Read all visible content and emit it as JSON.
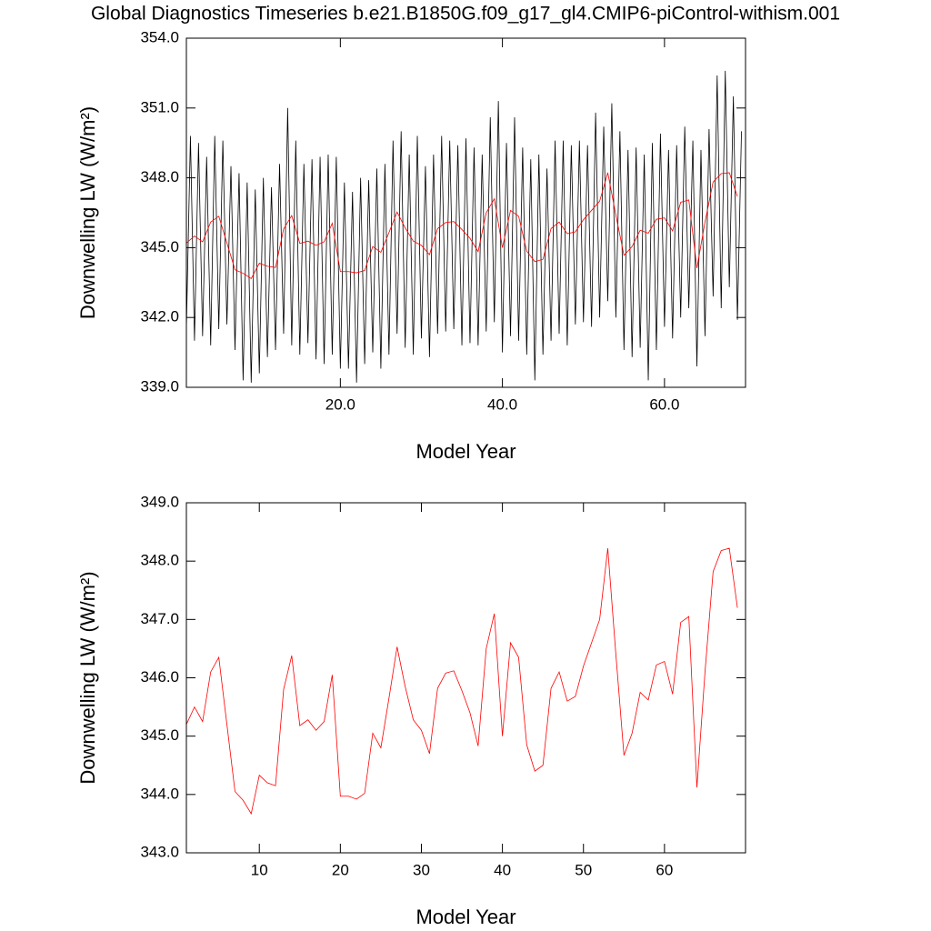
{
  "chart_data": [
    {
      "type": "line",
      "title": "Global Diagnostics Timeseries b.e21.B1850G.f09_g17_gl4.CMIP6-piControl-withism.001",
      "x_label": "Model Year",
      "y_label": "Downwelling LW (W/m²)",
      "xlim": [
        1,
        70
      ],
      "ylim": [
        339,
        354
      ],
      "xticks": [
        {
          "value": 20,
          "label": "20.0"
        },
        {
          "value": 40,
          "label": "40.0"
        },
        {
          "value": 60,
          "label": "60.0"
        }
      ],
      "yticks": [
        {
          "value": 339,
          "label": "339.0"
        },
        {
          "value": 342,
          "label": "342.0"
        },
        {
          "value": 345,
          "label": "345.0"
        },
        {
          "value": 348,
          "label": "348.0"
        },
        {
          "value": 351,
          "label": "351.0"
        },
        {
          "value": 354,
          "label": "354.0"
        }
      ],
      "series": [
        {
          "color": "#000000",
          "x": [
            1,
            1.5,
            2,
            2.5,
            3,
            3.5,
            4,
            4.5,
            5,
            5.5,
            6,
            6.5,
            7,
            7.5,
            8,
            8.5,
            9,
            9.5,
            10,
            10.5,
            11,
            11.5,
            12,
            12.5,
            13,
            13.5,
            14,
            14.5,
            15,
            15.5,
            16,
            16.5,
            17,
            17.5,
            18,
            18.5,
            19,
            19.5,
            20,
            20.5,
            21,
            21.5,
            22,
            22.5,
            23,
            23.5,
            24,
            24.5,
            25,
            25.5,
            26,
            26.5,
            27,
            27.5,
            28,
            28.5,
            29,
            29.5,
            30,
            30.5,
            31,
            31.5,
            32,
            32.5,
            33,
            33.5,
            34,
            34.5,
            35,
            35.5,
            36,
            36.5,
            37,
            37.5,
            38,
            38.5,
            39,
            39.5,
            40,
            40.5,
            41,
            41.5,
            42,
            42.5,
            43,
            43.5,
            44,
            44.5,
            45,
            45.5,
            46,
            46.5,
            47,
            47.5,
            48,
            48.5,
            49,
            49.5,
            50,
            50.5,
            51,
            51.5,
            52,
            52.5,
            53,
            53.5,
            54,
            54.5,
            55,
            55.5,
            56,
            56.5,
            57,
            57.5,
            58,
            58.5,
            59,
            59.5,
            60,
            60.5,
            61,
            61.5,
            62,
            62.5,
            63,
            63.5,
            64,
            64.5,
            65,
            65.5,
            66,
            66.5,
            67,
            67.5,
            68,
            68.5,
            69,
            69.5
          ],
          "values": [
            341.5,
            349.8,
            341.0,
            349.5,
            341.2,
            348.9,
            340.8,
            349.8,
            341.5,
            349.6,
            341.7,
            348.5,
            340.6,
            348.2,
            339.3,
            347.8,
            339.2,
            347.5,
            339.6,
            348.0,
            340.3,
            347.6,
            340.6,
            348.6,
            341.3,
            351.0,
            340.8,
            349.6,
            340.4,
            348.6,
            340.9,
            348.8,
            340.2,
            348.9,
            340.0,
            349.0,
            340.4,
            348.9,
            339.8,
            347.8,
            339.8,
            347.4,
            339.2,
            348.0,
            340.0,
            347.9,
            340.5,
            348.4,
            339.8,
            348.6,
            340.4,
            349.6,
            341.3,
            350.0,
            340.7,
            349.0,
            340.4,
            349.8,
            341.1,
            348.5,
            340.3,
            349.0,
            341.3,
            349.8,
            341.4,
            349.6,
            341.5,
            349.4,
            340.8,
            349.7,
            340.9,
            349.3,
            340.8,
            349.0,
            341.4,
            350.6,
            341.8,
            351.3,
            340.5,
            349.5,
            341.2,
            350.6,
            341.0,
            349.3,
            340.4,
            348.8,
            339.3,
            349.0,
            340.4,
            348.4,
            341.0,
            349.6,
            341.3,
            349.6,
            340.8,
            349.4,
            341.7,
            349.6,
            341.8,
            349.4,
            341.6,
            350.8,
            342.0,
            350.2,
            342.7,
            351.2,
            342.0,
            350.0,
            340.6,
            349.2,
            340.3,
            349.3,
            340.7,
            349.0,
            339.3,
            349.5,
            340.6,
            349.9,
            341.6,
            349.2,
            341.1,
            349.4,
            342.0,
            350.2,
            342.4,
            349.6,
            339.9,
            349.2,
            341.2,
            350.1,
            342.9,
            352.4,
            342.4,
            352.6,
            343.3,
            351.5,
            341.9,
            350.0
          ]
        },
        {
          "color": "#ff0000",
          "x": [
            1,
            2,
            3,
            4,
            5,
            6,
            7,
            8,
            9,
            10,
            11,
            12,
            13,
            14,
            15,
            16,
            17,
            18,
            19,
            20,
            21,
            22,
            23,
            24,
            25,
            26,
            27,
            28,
            29,
            30,
            31,
            32,
            33,
            34,
            35,
            36,
            37,
            38,
            39,
            40,
            41,
            42,
            43,
            44,
            45,
            46,
            47,
            48,
            49,
            50,
            51,
            52,
            53,
            54,
            55,
            56,
            57,
            58,
            59,
            60,
            61,
            62,
            63,
            64,
            65,
            66,
            67,
            68,
            69
          ],
          "values": [
            345.2,
            345.5,
            345.25,
            346.1,
            346.35,
            345.2,
            344.05,
            343.9,
            343.67,
            344.33,
            344.2,
            344.15,
            345.8,
            346.38,
            345.18,
            345.28,
            345.1,
            345.25,
            346.05,
            343.97,
            343.97,
            343.92,
            344.02,
            345.05,
            344.8,
            345.65,
            346.53,
            345.85,
            345.28,
            345.1,
            344.7,
            345.82,
            346.08,
            346.12,
            345.78,
            345.4,
            344.83,
            346.5,
            347.1,
            345.0,
            346.6,
            346.35,
            344.85,
            344.4,
            344.5,
            345.82,
            346.1,
            345.6,
            345.68,
            346.2,
            346.6,
            347.0,
            348.22,
            346.4,
            344.67,
            345.05,
            345.75,
            345.62,
            346.22,
            346.28,
            345.72,
            346.95,
            347.05,
            344.12,
            346.1,
            347.82,
            348.18,
            348.22,
            347.2
          ]
        }
      ]
    },
    {
      "type": "line",
      "x_label": "Model Year",
      "y_label": "Downwelling LW (W/m²)",
      "xlim": [
        1,
        70
      ],
      "ylim": [
        343,
        349
      ],
      "xticks": [
        10,
        20,
        30,
        40,
        50,
        60
      ],
      "yticks": [
        {
          "value": 343,
          "label": "343.0"
        },
        {
          "value": 344,
          "label": "344.0"
        },
        {
          "value": 345,
          "label": "345.0"
        },
        {
          "value": 346,
          "label": "346.0"
        },
        {
          "value": 347,
          "label": "347.0"
        },
        {
          "value": 348,
          "label": "348.0"
        },
        {
          "value": 349,
          "label": "349.0"
        }
      ],
      "series": [
        {
          "color": "#ff0000",
          "x": [
            1,
            2,
            3,
            4,
            5,
            6,
            7,
            8,
            9,
            10,
            11,
            12,
            13,
            14,
            15,
            16,
            17,
            18,
            19,
            20,
            21,
            22,
            23,
            24,
            25,
            26,
            27,
            28,
            29,
            30,
            31,
            32,
            33,
            34,
            35,
            36,
            37,
            38,
            39,
            40,
            41,
            42,
            43,
            44,
            45,
            46,
            47,
            48,
            49,
            50,
            51,
            52,
            53,
            54,
            55,
            56,
            57,
            58,
            59,
            60,
            61,
            62,
            63,
            64,
            65,
            66,
            67,
            68,
            69
          ],
          "values": [
            345.2,
            345.5,
            345.25,
            346.1,
            346.35,
            345.2,
            344.05,
            343.9,
            343.67,
            344.33,
            344.2,
            344.15,
            345.8,
            346.38,
            345.18,
            345.28,
            345.1,
            345.25,
            346.05,
            343.97,
            343.97,
            343.92,
            344.02,
            345.05,
            344.8,
            345.65,
            346.53,
            345.85,
            345.28,
            345.1,
            344.7,
            345.82,
            346.08,
            346.12,
            345.78,
            345.4,
            344.83,
            346.5,
            347.1,
            345.0,
            346.6,
            346.35,
            344.85,
            344.4,
            344.5,
            345.82,
            346.1,
            345.6,
            345.68,
            346.2,
            346.6,
            347.0,
            348.22,
            346.4,
            344.67,
            345.05,
            345.75,
            345.62,
            346.22,
            346.28,
            345.72,
            346.95,
            347.05,
            344.12,
            346.1,
            347.82,
            348.18,
            348.22,
            347.2
          ]
        }
      ]
    }
  ]
}
